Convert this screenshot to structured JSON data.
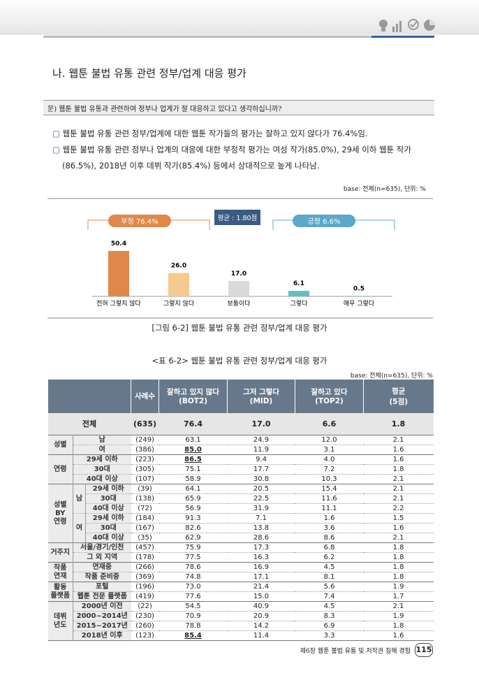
{
  "header": {
    "section_title": "나. 웹툰 불법 유통 관련 정부/업계 대응 평가"
  },
  "question": "문) 웹툰 불법 유통과 관련하여 정부나 업계가 잘 대응하고 있다고 생각하십니까?",
  "bullets": [
    "웹툰 불법 유통 관련 정부/업계에 대한 웹툰 작가들의 평가는 잘하고 있지 않다가 76.4%임.",
    "웹툰 불법 유통 관련 정부나 업계의 대응에 대한 부정적 평가는 여성 작가(85.0%), 29세 이하 웹툰 작가(86.5%), 2018년 이후 데뷔 작가(85.4%) 등에서 상대적으로 높게 나타남."
  ],
  "chart_base": "base: 전체(n=635), 단위: %",
  "chart_data": {
    "type": "bar",
    "categories": [
      "전혀 그렇지 않다",
      "그렇지 않다",
      "보통이다",
      "그렇다",
      "매우 그렇다"
    ],
    "values": [
      50.4,
      26.0,
      17.0,
      6.1,
      0.5
    ],
    "value_labels": [
      "50.4",
      "26.0",
      "17.0",
      "6.1",
      "0.5"
    ],
    "colors": [
      "#e0884a",
      "#f6ca8e",
      "#d9d9d9",
      "#63bfc2",
      "#63bfc2"
    ],
    "annotations": [
      "부정 76.4%",
      "평균 : 1.80점",
      "긍정 6.6%"
    ]
  },
  "figure_caption": "[그림 6-2] 웹툰 불법 유통 관련 정부/업계 대응 평가",
  "table_title": "<표 6-2> 웹툰 불법 유통 관련 정부/업계 대응 평가",
  "table_base": "base: 전체(n=635), 단위: %",
  "table": {
    "header": [
      [
        "사례수"
      ],
      [
        "잘하고 있지 않다",
        "(BOT2)"
      ],
      [
        "그저 그렇다",
        "(MID)"
      ],
      [
        "잘하고 있다",
        "(TOP2)"
      ],
      [
        "평균",
        "(5점)"
      ]
    ],
    "total": {
      "label": "전체",
      "values": [
        "(635)",
        "76.4",
        "17.0",
        "6.6",
        "1.8"
      ]
    },
    "sections": [
      {
        "label": [
          "성별"
        ],
        "rows": [
          {
            "label": "남",
            "values": [
              "(249)",
              "63.1",
              "24.9",
              "12.0",
              "2.1"
            ]
          },
          {
            "label": "여",
            "values": [
              "(386)",
              "85.0",
              "11.9",
              "3.1",
              "1.6"
            ],
            "emphasis": true
          }
        ]
      },
      {
        "label": [
          "연령"
        ],
        "rows": [
          {
            "label": "29세 이하",
            "values": [
              "(223)",
              "86.5",
              "9.4",
              "4.0",
              "1.6"
            ],
            "emphasis": true
          },
          {
            "label": "30대",
            "values": [
              "(305)",
              "75.1",
              "17.7",
              "7.2",
              "1.8"
            ]
          },
          {
            "label": "40대 이상",
            "values": [
              "(107)",
              "58.9",
              "30.8",
              "10.3",
              "2.1"
            ]
          }
        ]
      },
      {
        "label": [
          "성별",
          "BY",
          "연령"
        ],
        "subgroups": [
          {
            "label": "남",
            "rows": [
              {
                "label": "29세 이하",
                "values": [
                  "(39)",
                  "64.1",
                  "20.5",
                  "15.4",
                  "2.1"
                ]
              },
              {
                "label": "30대",
                "values": [
                  "(138)",
                  "65.9",
                  "22.5",
                  "11.6",
                  "2.1"
                ]
              },
              {
                "label": "40대 이상",
                "values": [
                  "(72)",
                  "56.9",
                  "31.9",
                  "11.1",
                  "2.2"
                ]
              }
            ]
          },
          {
            "label": "여",
            "rows": [
              {
                "label": "29세 이하",
                "values": [
                  "(184)",
                  "91.3",
                  "7.1",
                  "1.6",
                  "1.5"
                ]
              },
              {
                "label": "30대",
                "values": [
                  "(167)",
                  "82.6",
                  "13.8",
                  "3.6",
                  "1.6"
                ]
              },
              {
                "label": "40대 이상",
                "values": [
                  "(35)",
                  "62.9",
                  "28.6",
                  "8.6",
                  "2.1"
                ]
              }
            ]
          }
        ]
      },
      {
        "label": [
          "거주지"
        ],
        "rows": [
          {
            "label": "서울/경기/인천",
            "values": [
              "(457)",
              "75.9",
              "17.3",
              "6.8",
              "1.8"
            ]
          },
          {
            "label": "그 외 지역",
            "values": [
              "(178)",
              "77.5",
              "16.3",
              "6.2",
              "1.8"
            ]
          }
        ]
      },
      {
        "label": [
          "작품",
          "연재"
        ],
        "rows": [
          {
            "label": "연재중",
            "values": [
              "(266)",
              "78.6",
              "16.9",
              "4.5",
              "1.8"
            ]
          },
          {
            "label": "작품 준비중",
            "values": [
              "(369)",
              "74.8",
              "17.1",
              "8.1",
              "1.8"
            ]
          }
        ]
      },
      {
        "label": [
          "활동",
          "플랫폼"
        ],
        "rows": [
          {
            "label": "포털",
            "values": [
              "(196)",
              "73.0",
              "21.4",
              "5.6",
              "1.9"
            ]
          },
          {
            "label": "웹툰 전문 플랫폼",
            "values": [
              "(419)",
              "77.6",
              "15.0",
              "7.4",
              "1.7"
            ]
          }
        ]
      },
      {
        "label": [
          "데뷔",
          "년도"
        ],
        "rows": [
          {
            "label": "2000년 이전",
            "values": [
              "(22)",
              "54.5",
              "40.9",
              "4.5",
              "2.1"
            ]
          },
          {
            "label": "2000~2014년",
            "values": [
              "(230)",
              "70.9",
              "20.9",
              "8.3",
              "1.9"
            ]
          },
          {
            "label": "2015~2017년",
            "values": [
              "(260)",
              "78.8",
              "14.2",
              "6.9",
              "1.8"
            ]
          },
          {
            "label": "2018년 이후",
            "values": [
              "(123)",
              "85.4",
              "11.4",
              "3.3",
              "1.6"
            ],
            "emphasis": true
          }
        ]
      }
    ]
  },
  "footer": {
    "chapter": "제6장 웹툰 불법 유통 및 저작권 침해 경험",
    "page": "115"
  }
}
